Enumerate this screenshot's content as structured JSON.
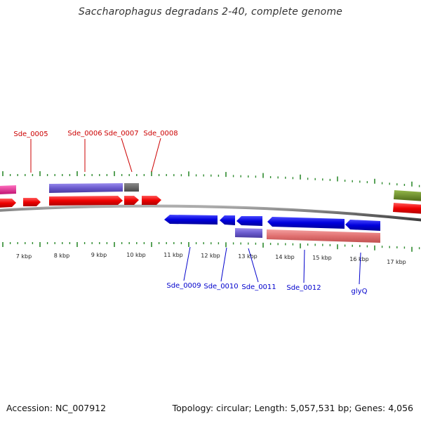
{
  "title": "Saccharophagus degradans 2-40, complete genome",
  "footer": {
    "accession_label": "Accession:",
    "accession": "NC_007912",
    "topology": "Topology: circular; Length: 5,057,531 bp; Genes: 4,056"
  },
  "colors": {
    "forward_label": "#cc0000",
    "reverse_label": "#0000cc",
    "cds_forward": "#ee0000",
    "cds_reverse": "#0000dd",
    "backbone": "#6f6f6f",
    "tick": "#2e8b2e",
    "purple": "#6a5acd",
    "gray_feature": "#666666",
    "salmon": "#e06a6a",
    "magenta": "#e0208c",
    "olive": "#6b8e23"
  },
  "kbp_labels": [
    "7 kbp",
    "8 kbp",
    "9 kbp",
    "10 kbp",
    "11 kbp",
    "12 kbp",
    "13 kbp",
    "14 kbp",
    "15 kbp",
    "16 kbp",
    "17 kbp"
  ],
  "forward_genes": [
    {
      "name": "Sde_0005"
    },
    {
      "name": "Sde_0006"
    },
    {
      "name": "Sde_0007"
    },
    {
      "name": "Sde_0008"
    }
  ],
  "reverse_genes": [
    {
      "name": "Sde_0009"
    },
    {
      "name": "Sde_0010"
    },
    {
      "name": "Sde_0011"
    },
    {
      "name": "Sde_0012"
    },
    {
      "name": "glyQ"
    }
  ]
}
